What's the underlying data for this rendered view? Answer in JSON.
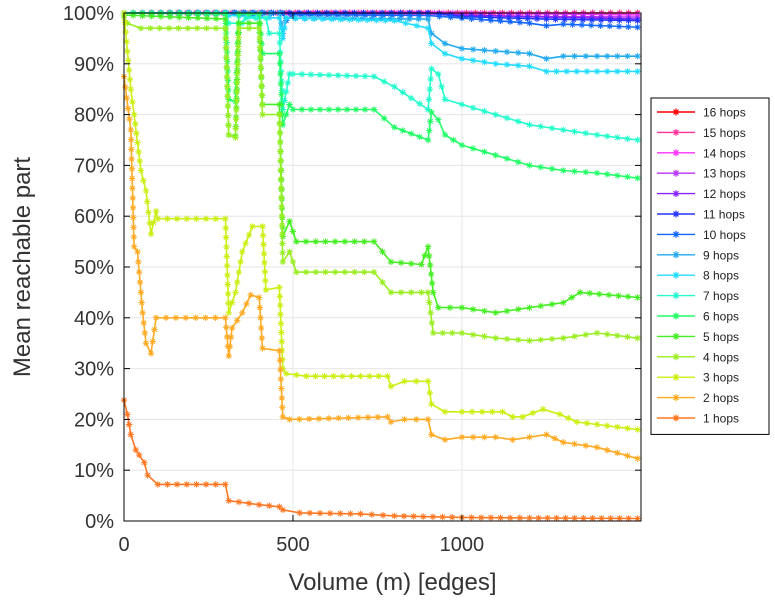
{
  "chart_data": {
    "type": "line",
    "title": "",
    "xlabel": "Volume (m) [edges]",
    "ylabel": "Mean reachable part",
    "xlim": [
      0,
      1530
    ],
    "ylim": [
      0,
      100
    ],
    "x_ticks": [
      0,
      500,
      1000
    ],
    "y_ticks": [
      0,
      10,
      20,
      30,
      40,
      50,
      60,
      70,
      80,
      90,
      100
    ],
    "x_tick_labels": [
      "0",
      "500",
      "1000"
    ],
    "y_tick_labels": [
      "0%",
      "10%",
      "20%",
      "30%",
      "40%",
      "50%",
      "60%",
      "70%",
      "80%",
      "90%",
      "100%"
    ],
    "grid": true,
    "legend_position": "right",
    "marker": "asterisk",
    "series": [
      {
        "name": "16 hops",
        "color": "#ff0000",
        "points": [
          [
            0,
            100
          ],
          [
            1520,
            100
          ]
        ]
      },
      {
        "name": "15 hops",
        "color": "#ff3399",
        "points": [
          [
            0,
            100
          ],
          [
            1520,
            100
          ]
        ]
      },
      {
        "name": "14 hops",
        "color": "#ff33ff",
        "points": [
          [
            0,
            100
          ],
          [
            1000,
            100
          ],
          [
            1250,
            99.8
          ],
          [
            1520,
            99.6
          ]
        ]
      },
      {
        "name": "13 hops",
        "color": "#bb33ff",
        "points": [
          [
            0,
            100
          ],
          [
            900,
            100
          ],
          [
            1000,
            99.5
          ],
          [
            1250,
            99.3
          ],
          [
            1520,
            99.2
          ]
        ]
      },
      {
        "name": "12 hops",
        "color": "#8822ff",
        "points": [
          [
            0,
            100
          ],
          [
            900,
            100
          ],
          [
            1000,
            99.6
          ],
          [
            1250,
            99.2
          ],
          [
            1520,
            98.8
          ]
        ]
      },
      {
        "name": "11 hops",
        "color": "#2233ff",
        "points": [
          [
            0,
            100
          ],
          [
            900,
            100
          ],
          [
            1000,
            99.3
          ],
          [
            1250,
            98.8
          ],
          [
            1520,
            98.5
          ]
        ]
      },
      {
        "name": "10 hops",
        "color": "#1166ff",
        "points": [
          [
            0,
            100
          ],
          [
            470,
            100
          ],
          [
            480,
            98.5
          ],
          [
            500,
            99.7
          ],
          [
            900,
            99.5
          ],
          [
            1000,
            99
          ],
          [
            1200,
            98
          ],
          [
            1250,
            97.5
          ],
          [
            1300,
            97.8
          ],
          [
            1520,
            97.2
          ]
        ]
      },
      {
        "name": "9 hops",
        "color": "#22aaee",
        "points": [
          [
            0,
            100
          ],
          [
            460,
            100
          ],
          [
            470,
            96
          ],
          [
            480,
            99
          ],
          [
            900,
            98.8
          ],
          [
            910,
            96
          ],
          [
            950,
            94
          ],
          [
            1000,
            93
          ],
          [
            1100,
            92.5
          ],
          [
            1200,
            92
          ],
          [
            1250,
            91
          ],
          [
            1300,
            91.5
          ],
          [
            1400,
            91.5
          ],
          [
            1520,
            91.5
          ]
        ]
      },
      {
        "name": "8 hops",
        "color": "#22ddff",
        "points": [
          [
            0,
            100
          ],
          [
            300,
            100
          ],
          [
            310,
            99.5
          ],
          [
            460,
            99
          ],
          [
            470,
            95
          ],
          [
            480,
            99
          ],
          [
            800,
            98.5
          ],
          [
            900,
            97
          ],
          [
            910,
            94
          ],
          [
            950,
            92
          ],
          [
            1000,
            91
          ],
          [
            1100,
            90
          ],
          [
            1200,
            89.5
          ],
          [
            1250,
            88.5
          ],
          [
            1400,
            88.5
          ],
          [
            1520,
            88.5
          ]
        ]
      },
      {
        "name": "7 hops",
        "color": "#22ffcc",
        "points": [
          [
            0,
            100
          ],
          [
            300,
            100
          ],
          [
            310,
            98
          ],
          [
            350,
            98
          ],
          [
            360,
            99
          ],
          [
            420,
            99
          ],
          [
            430,
            96
          ],
          [
            460,
            96
          ],
          [
            470,
            81
          ],
          [
            490,
            88
          ],
          [
            500,
            88
          ],
          [
            740,
            87.5
          ],
          [
            800,
            85.5
          ],
          [
            900,
            81
          ],
          [
            910,
            89
          ],
          [
            930,
            88
          ],
          [
            950,
            83
          ],
          [
            1000,
            82
          ],
          [
            1100,
            80
          ],
          [
            1200,
            78
          ],
          [
            1300,
            77
          ],
          [
            1400,
            76
          ],
          [
            1520,
            75
          ]
        ]
      },
      {
        "name": "6 hops",
        "color": "#22ff66",
        "points": [
          [
            0,
            100
          ],
          [
            300,
            99.8
          ],
          [
            310,
            83
          ],
          [
            330,
            82.5
          ],
          [
            340,
            99.8
          ],
          [
            400,
            99.8
          ],
          [
            410,
            92
          ],
          [
            460,
            92
          ],
          [
            470,
            78
          ],
          [
            490,
            82
          ],
          [
            500,
            81
          ],
          [
            740,
            81
          ],
          [
            800,
            77.5
          ],
          [
            900,
            75
          ],
          [
            910,
            80.5
          ],
          [
            930,
            79
          ],
          [
            950,
            76
          ],
          [
            1000,
            74
          ],
          [
            1100,
            72
          ],
          [
            1200,
            70
          ],
          [
            1300,
            69
          ],
          [
            1400,
            68.5
          ],
          [
            1520,
            67.5
          ]
        ]
      },
      {
        "name": "5 hops",
        "color": "#44ee22",
        "points": [
          [
            0,
            99.6
          ],
          [
            300,
            98.8
          ],
          [
            310,
            76
          ],
          [
            330,
            75.8
          ],
          [
            340,
            98
          ],
          [
            400,
            98
          ],
          [
            410,
            82
          ],
          [
            460,
            82
          ],
          [
            470,
            56
          ],
          [
            490,
            59
          ],
          [
            510,
            55
          ],
          [
            740,
            55
          ],
          [
            790,
            51
          ],
          [
            880,
            50.5
          ],
          [
            900,
            54
          ],
          [
            915,
            45
          ],
          [
            930,
            42
          ],
          [
            1000,
            42
          ],
          [
            1100,
            41
          ],
          [
            1200,
            42
          ],
          [
            1300,
            43
          ],
          [
            1350,
            45
          ],
          [
            1520,
            44
          ]
        ]
      },
      {
        "name": "4 hops",
        "color": "#99ee22",
        "points": [
          [
            0,
            99.2
          ],
          [
            10,
            98
          ],
          [
            50,
            97
          ],
          [
            300,
            97
          ],
          [
            310,
            76
          ],
          [
            330,
            75.5
          ],
          [
            340,
            97
          ],
          [
            400,
            97
          ],
          [
            410,
            80
          ],
          [
            460,
            80
          ],
          [
            470,
            51
          ],
          [
            490,
            53
          ],
          [
            510,
            49
          ],
          [
            740,
            49
          ],
          [
            790,
            45
          ],
          [
            880,
            45
          ],
          [
            900,
            45
          ],
          [
            915,
            37
          ],
          [
            1000,
            37
          ],
          [
            1100,
            36
          ],
          [
            1200,
            35.5
          ],
          [
            1300,
            36
          ],
          [
            1400,
            37
          ],
          [
            1520,
            36
          ]
        ]
      },
      {
        "name": "3 hops",
        "color": "#ccee11",
        "points": [
          [
            0,
            100
          ],
          [
            20,
            85
          ],
          [
            30,
            80
          ],
          [
            50,
            69
          ],
          [
            65,
            65
          ],
          [
            80,
            56.5
          ],
          [
            95,
            61
          ],
          [
            100,
            59.5
          ],
          [
            300,
            59.5
          ],
          [
            310,
            41
          ],
          [
            330,
            45
          ],
          [
            350,
            53
          ],
          [
            380,
            58
          ],
          [
            410,
            58
          ],
          [
            420,
            45.5
          ],
          [
            460,
            46
          ],
          [
            470,
            30
          ],
          [
            480,
            29
          ],
          [
            540,
            28.5
          ],
          [
            780,
            28.5
          ],
          [
            790,
            26.5
          ],
          [
            830,
            27.5
          ],
          [
            900,
            27.5
          ],
          [
            910,
            23
          ],
          [
            950,
            21.5
          ],
          [
            1000,
            21.5
          ],
          [
            1120,
            21.5
          ],
          [
            1150,
            20.5
          ],
          [
            1180,
            20.5
          ],
          [
            1240,
            22
          ],
          [
            1290,
            21
          ],
          [
            1340,
            19.5
          ],
          [
            1400,
            19
          ],
          [
            1520,
            18
          ]
        ]
      },
      {
        "name": "2 hops",
        "color": "#ffaa22",
        "points": [
          [
            0,
            87.5
          ],
          [
            20,
            77
          ],
          [
            30,
            54
          ],
          [
            40,
            53
          ],
          [
            55,
            41
          ],
          [
            65,
            35
          ],
          [
            80,
            33
          ],
          [
            95,
            40
          ],
          [
            300,
            40
          ],
          [
            310,
            32.5
          ],
          [
            320,
            38
          ],
          [
            350,
            41
          ],
          [
            375,
            44.5
          ],
          [
            400,
            44
          ],
          [
            410,
            34
          ],
          [
            460,
            33.5
          ],
          [
            470,
            20.5
          ],
          [
            490,
            20
          ],
          [
            780,
            20.5
          ],
          [
            790,
            19.5
          ],
          [
            830,
            20
          ],
          [
            900,
            20
          ],
          [
            910,
            17
          ],
          [
            950,
            16
          ],
          [
            1000,
            16.5
          ],
          [
            1100,
            16.5
          ],
          [
            1150,
            16
          ],
          [
            1200,
            16.5
          ],
          [
            1250,
            17
          ],
          [
            1300,
            15.5
          ],
          [
            1400,
            14.5
          ],
          [
            1520,
            12.3
          ]
        ]
      },
      {
        "name": "1 hops",
        "color": "#ff7722",
        "points": [
          [
            0,
            23.8
          ],
          [
            10,
            21
          ],
          [
            20,
            17
          ],
          [
            35,
            14
          ],
          [
            45,
            13
          ],
          [
            60,
            11.5
          ],
          [
            70,
            9
          ],
          [
            100,
            7.2
          ],
          [
            300,
            7.2
          ],
          [
            310,
            4
          ],
          [
            400,
            3.2
          ],
          [
            460,
            2.8
          ],
          [
            470,
            2.2
          ],
          [
            520,
            1.6
          ],
          [
            700,
            1.4
          ],
          [
            800,
            1
          ],
          [
            1000,
            0.7
          ],
          [
            1200,
            0.6
          ],
          [
            1520,
            0.5
          ]
        ]
      }
    ]
  }
}
